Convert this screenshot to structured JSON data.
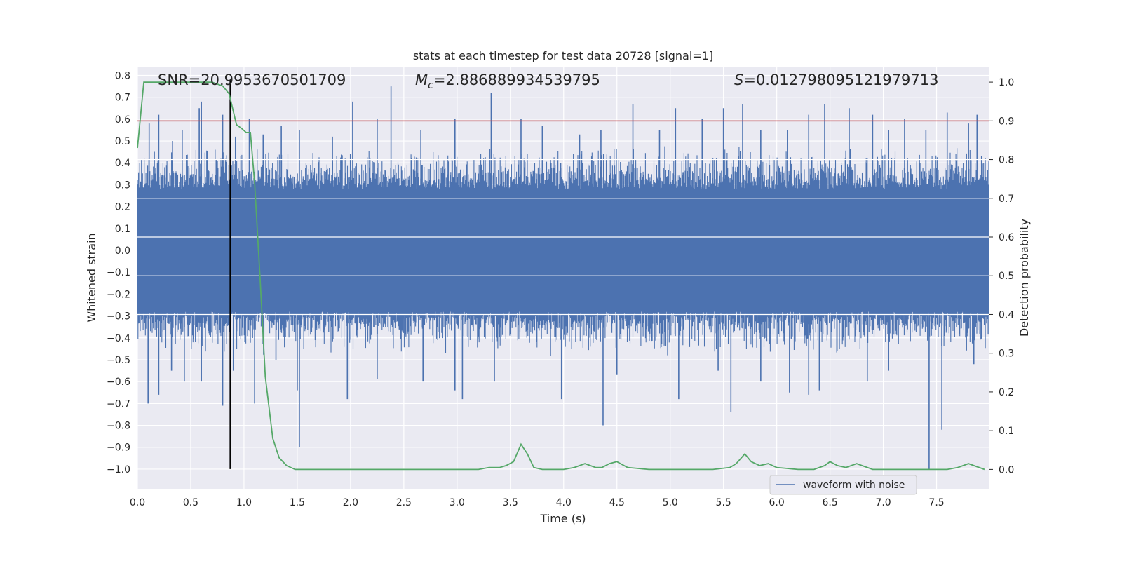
{
  "chart_data": {
    "type": "line",
    "title": "stats at each timestep for test data 20728 [signal=1]",
    "xlabel": "Time (s)",
    "ylabel": "Whitened strain",
    "ylabel_right": "Detection probability",
    "xlim": [
      0.0,
      7.99
    ],
    "ylim": [
      -1.09,
      0.84
    ],
    "ylim_right": [
      -0.05,
      1.04
    ],
    "x_ticks": [
      "0.0",
      "0.5",
      "1.0",
      "1.5",
      "2.0",
      "2.5",
      "3.0",
      "3.5",
      "4.0",
      "4.5",
      "5.0",
      "5.5",
      "6.0",
      "6.5",
      "7.0",
      "7.5"
    ],
    "y_ticks": [
      "0.8",
      "0.7",
      "0.6",
      "0.5",
      "0.4",
      "0.3",
      "0.2",
      "0.1",
      "0.0",
      "-0.1",
      "-0.2",
      "-0.3",
      "-0.4",
      "-0.5",
      "-0.6",
      "-0.7",
      "-0.8",
      "-0.9",
      "-1.0"
    ],
    "y_ticks_right": [
      "1.0",
      "0.9",
      "0.8",
      "0.7",
      "0.6",
      "0.5",
      "0.4",
      "0.3",
      "0.2",
      "0.1",
      "0.0"
    ],
    "grid": true,
    "legend_position": "lower-right",
    "annotations": {
      "snr": "SNR=20.9953670501709",
      "mc_symbol": "M",
      "mc_sub": "c",
      "mc_value": "=2.886889934539795",
      "s_symbol": "S",
      "s_value": "=0.012798095121979713"
    },
    "series": [
      {
        "name": "waveform with noise",
        "axis": "left",
        "color": "#4c72b0",
        "band_core": [
          -0.28,
          0.28
        ],
        "band_typical": [
          -0.45,
          0.45
        ],
        "peaks": [
          [
            0.11,
            0.58
          ],
          [
            0.2,
            0.62
          ],
          [
            0.42,
            0.55
          ],
          [
            0.6,
            0.68
          ],
          [
            0.58,
            0.65
          ],
          [
            0.8,
            0.62
          ],
          [
            0.92,
            0.52
          ],
          [
            1.05,
            0.6
          ],
          [
            1.35,
            0.57
          ],
          [
            1.52,
            0.55
          ],
          [
            1.83,
            0.52
          ],
          [
            2.02,
            0.68
          ],
          [
            2.25,
            0.6
          ],
          [
            2.38,
            0.75
          ],
          [
            2.66,
            0.55
          ],
          [
            2.98,
            0.6
          ],
          [
            3.32,
            0.72
          ],
          [
            3.6,
            0.6
          ],
          [
            3.8,
            0.57
          ],
          [
            4.15,
            0.53
          ],
          [
            4.35,
            0.55
          ],
          [
            4.65,
            0.67
          ],
          [
            4.9,
            0.55
          ],
          [
            5.05,
            0.65
          ],
          [
            5.3,
            0.6
          ],
          [
            5.5,
            0.65
          ],
          [
            5.68,
            0.67
          ],
          [
            5.85,
            0.55
          ],
          [
            6.1,
            0.55
          ],
          [
            6.3,
            0.62
          ],
          [
            6.45,
            0.67
          ],
          [
            6.68,
            0.65
          ],
          [
            6.9,
            0.62
          ],
          [
            7.05,
            0.55
          ],
          [
            7.2,
            0.6
          ],
          [
            7.4,
            0.55
          ],
          [
            7.6,
            0.63
          ],
          [
            7.8,
            0.58
          ],
          [
            7.88,
            0.62
          ],
          [
            0.33,
            0.5
          ],
          [
            1.18,
            0.53
          ]
        ],
        "troughs": [
          [
            0.1,
            -0.7
          ],
          [
            0.2,
            -0.66
          ],
          [
            0.44,
            -0.6
          ],
          [
            0.6,
            -0.6
          ],
          [
            0.8,
            -0.71
          ],
          [
            0.9,
            -0.55
          ],
          [
            1.1,
            -0.7
          ],
          [
            1.5,
            -0.64
          ],
          [
            1.52,
            -0.9
          ],
          [
            1.97,
            -0.68
          ],
          [
            2.25,
            -0.59
          ],
          [
            2.68,
            -0.6
          ],
          [
            2.98,
            -0.64
          ],
          [
            3.05,
            -0.68
          ],
          [
            3.35,
            -0.6
          ],
          [
            3.98,
            -0.68
          ],
          [
            4.37,
            -0.8
          ],
          [
            4.5,
            -0.57
          ],
          [
            5.08,
            -0.68
          ],
          [
            5.45,
            -0.55
          ],
          [
            5.57,
            -0.74
          ],
          [
            5.85,
            -0.6
          ],
          [
            6.12,
            -0.65
          ],
          [
            6.3,
            -0.66
          ],
          [
            6.4,
            -0.64
          ],
          [
            6.85,
            -0.6
          ],
          [
            7.05,
            -0.55
          ],
          [
            7.43,
            -1.0
          ],
          [
            7.55,
            -0.82
          ],
          [
            7.85,
            -0.52
          ],
          [
            0.32,
            -0.55
          ],
          [
            1.3,
            -0.5
          ]
        ]
      },
      {
        "name": "detection probability",
        "axis": "right",
        "color": "#55a868",
        "x": [
          0.0,
          0.06,
          0.1,
          0.2,
          0.3,
          0.4,
          0.5,
          0.6,
          0.7,
          0.8,
          0.86,
          0.93,
          0.98,
          1.02,
          1.06,
          1.1,
          1.15,
          1.2,
          1.27,
          1.33,
          1.4,
          1.48,
          1.6,
          1.8,
          2.0,
          2.2,
          2.4,
          2.6,
          2.8,
          3.0,
          3.2,
          3.3,
          3.4,
          3.46,
          3.53,
          3.6,
          3.66,
          3.72,
          3.8,
          4.0,
          4.1,
          4.2,
          4.3,
          4.36,
          4.43,
          4.5,
          4.6,
          4.8,
          5.0,
          5.2,
          5.4,
          5.56,
          5.62,
          5.7,
          5.76,
          5.84,
          5.92,
          6.0,
          6.2,
          6.35,
          6.45,
          6.5,
          6.57,
          6.65,
          6.75,
          6.9,
          7.1,
          7.3,
          7.6,
          7.7,
          7.8,
          7.95
        ],
        "y": [
          0.83,
          1.0,
          1.0,
          1.0,
          1.0,
          1.0,
          1.0,
          1.0,
          1.0,
          0.99,
          0.97,
          0.89,
          0.88,
          0.87,
          0.87,
          0.74,
          0.5,
          0.24,
          0.08,
          0.03,
          0.01,
          0.0,
          0.0,
          0.0,
          0.0,
          0.0,
          0.0,
          0.0,
          0.0,
          0.0,
          0.0,
          0.005,
          0.005,
          0.01,
          0.02,
          0.065,
          0.04,
          0.005,
          0.0,
          0.0,
          0.005,
          0.015,
          0.005,
          0.005,
          0.015,
          0.02,
          0.005,
          0.0,
          0.0,
          0.0,
          0.0,
          0.005,
          0.015,
          0.04,
          0.02,
          0.01,
          0.015,
          0.005,
          0.0,
          0.0,
          0.01,
          0.02,
          0.01,
          0.005,
          0.015,
          0.0,
          0.0,
          0.0,
          0.0,
          0.005,
          0.015,
          0.0
        ]
      }
    ],
    "threshold": {
      "value_right": 0.9,
      "color": "#c44e52"
    },
    "marker_line": {
      "x": 0.87,
      "y_range": [
        -1.0,
        0.78
      ],
      "color": "#000000"
    }
  }
}
